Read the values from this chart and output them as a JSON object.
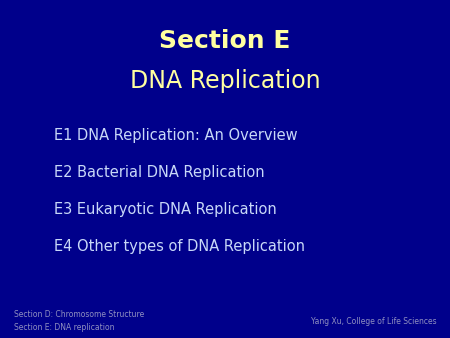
{
  "bg_color": "#00008B",
  "title_line1": "Section E",
  "title_line2": "DNA Replication",
  "title_color": "#FFFFA0",
  "title_line1_fontsize": 18,
  "title_line2_fontsize": 17,
  "bullet_items": [
    "E1 DNA Replication: An Overview",
    "E2 Bacterial DNA Replication",
    "E3 Eukaryotic DNA Replication",
    "E4 Other types of DNA Replication"
  ],
  "bullet_color": "#C8D8F8",
  "bullet_fontsize": 10.5,
  "footer_left_line1": "Section D: Chromosome Structure",
  "footer_left_line2": "Section E: DNA replication",
  "footer_right": "Yang Xu, College of Life Sciences",
  "footer_color": "#9090C0",
  "footer_fontsize": 5.5
}
